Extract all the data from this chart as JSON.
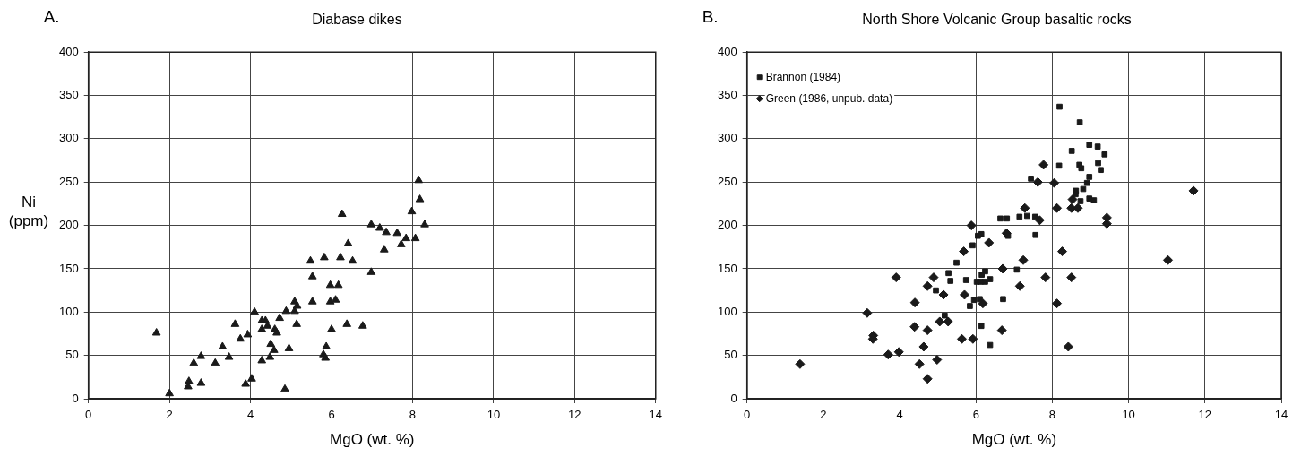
{
  "chart_data": [
    {
      "type": "scatter",
      "title": "Diabase dikes",
      "xlabel": "MgO (wt. %)",
      "ylabel": "Ni\n(ppm)",
      "annotations": [
        "A."
      ],
      "xlim": [
        0,
        14
      ],
      "xticks": [
        0,
        2,
        4,
        6,
        8,
        10,
        12,
        14
      ],
      "ylim": [
        0,
        400
      ],
      "yticks": [
        0,
        50,
        100,
        150,
        200,
        250,
        300,
        350,
        400
      ],
      "grid": true,
      "legend": false,
      "series": [
        {
          "color": "#1a1a1a",
          "marker": "triangle",
          "x": [
            1.68,
            2.0,
            2.46,
            2.48,
            2.78,
            2.6,
            2.78,
            3.13,
            3.31,
            3.47,
            3.62,
            3.75,
            3.93,
            3.88,
            4.03,
            4.1,
            4.28,
            4.37,
            4.28,
            4.42,
            4.6,
            4.65,
            4.5,
            4.58,
            4.48,
            4.28,
            4.72,
            4.88,
            4.95,
            4.85,
            5.09,
            5.15,
            5.09,
            5.14,
            5.48,
            5.53,
            5.53,
            5.82,
            5.87,
            5.8,
            5.85,
            5.97,
            6.17,
            5.97,
            6.1,
            6.0,
            6.22,
            6.26,
            6.41,
            6.52,
            6.38,
            6.77,
            6.98,
            6.98,
            7.19,
            7.35,
            7.3,
            7.62,
            7.84,
            7.72,
            8.07,
            7.98,
            8.15,
            8.18,
            8.3
          ],
          "values": [
            76,
            6,
            14,
            20,
            18,
            41,
            49,
            41,
            60,
            48,
            86,
            69,
            74,
            17,
            23,
            100,
            90,
            90,
            80,
            84,
            80,
            76,
            63,
            56,
            48,
            44,
            93,
            101,
            58,
            11,
            112,
            107,
            101,
            86,
            159,
            141,
            112,
            163,
            60,
            51,
            47,
            131,
            131,
            112,
            114,
            80,
            163,
            213,
            179,
            159,
            86,
            84,
            201,
            146,
            197,
            192,
            172,
            191,
            185,
            178,
            185,
            216,
            252,
            230,
            201
          ]
        }
      ]
    },
    {
      "type": "scatter",
      "title": "North Shore Volcanic Group basaltic rocks",
      "xlabel": "MgO (wt. %)",
      "annotations": [
        "B."
      ],
      "xlim": [
        0,
        14
      ],
      "xticks": [
        0,
        2,
        4,
        6,
        8,
        10,
        12,
        14
      ],
      "ylim": [
        0,
        400
      ],
      "yticks": [
        0,
        50,
        100,
        150,
        200,
        250,
        300,
        350,
        400
      ],
      "grid": true,
      "legend": "top left",
      "series": [
        {
          "name": "Brannon (1984)",
          "color": "#1a1a1a",
          "marker": "square",
          "x": [
            8.19,
            8.72,
            8.51,
            8.97,
            9.19,
            9.37,
            8.18,
            8.71,
            8.76,
            9.2,
            9.27,
            8.97,
            8.91,
            8.81,
            8.62,
            8.61,
            8.74,
            8.97,
            9.09,
            7.44,
            6.64,
            6.81,
            7.14,
            7.34,
            7.55,
            7.56,
            6.05,
            6.14,
            6.84,
            5.91,
            5.49,
            5.28,
            5.33,
            4.95,
            5.74,
            6.24,
            6.15,
            6.02,
            6.12,
            6.24,
            6.37,
            7.07,
            6.71,
            5.95,
            6.1,
            5.84,
            5.18,
            6.14,
            6.37
          ],
          "values": [
            337,
            319,
            286,
            293,
            291,
            282,
            269,
            270,
            266,
            272,
            264,
            256,
            249,
            242,
            240,
            236,
            228,
            231,
            229,
            254,
            208,
            208,
            210,
            211,
            210,
            189,
            188,
            190,
            188,
            177,
            157,
            145,
            136,
            125,
            137,
            147,
            143,
            135,
            135,
            135,
            138,
            149,
            115,
            114,
            115,
            107,
            96,
            84,
            62
          ]
        },
        {
          "name": "Green (1986, unpub. data)",
          "color": "#1a1a1a",
          "marker": "diamond",
          "x": [
            7.77,
            7.62,
            8.05,
            7.28,
            7.67,
            8.12,
            8.5,
            8.67,
            8.53,
            9.43,
            9.43,
            5.88,
            6.8,
            11.7,
            8.26,
            11.03,
            7.82,
            8.5,
            8.12,
            8.42,
            6.34,
            5.68,
            7.24,
            6.7,
            3.91,
            4.89,
            4.73,
            7.15,
            5.15,
            5.7,
            4.4,
            6.18,
            3.15,
            5.05,
            5.27,
            4.39,
            4.73,
            6.68,
            3.31,
            3.3,
            5.63,
            5.92,
            4.63,
            3.7,
            3.98,
            4.98,
            4.52,
            4.73,
            1.39
          ],
          "values": [
            270,
            250,
            249,
            220,
            206,
            220,
            220,
            220,
            230,
            202,
            209,
            200,
            191,
            240,
            170,
            160,
            140,
            140,
            110,
            60,
            180,
            170,
            160,
            150,
            140,
            140,
            130,
            130,
            120,
            120,
            111,
            110,
            99,
            89,
            89,
            83,
            79,
            79,
            73,
            69,
            69,
            69,
            60,
            51,
            54,
            45,
            40,
            23,
            40
          ]
        }
      ]
    }
  ]
}
